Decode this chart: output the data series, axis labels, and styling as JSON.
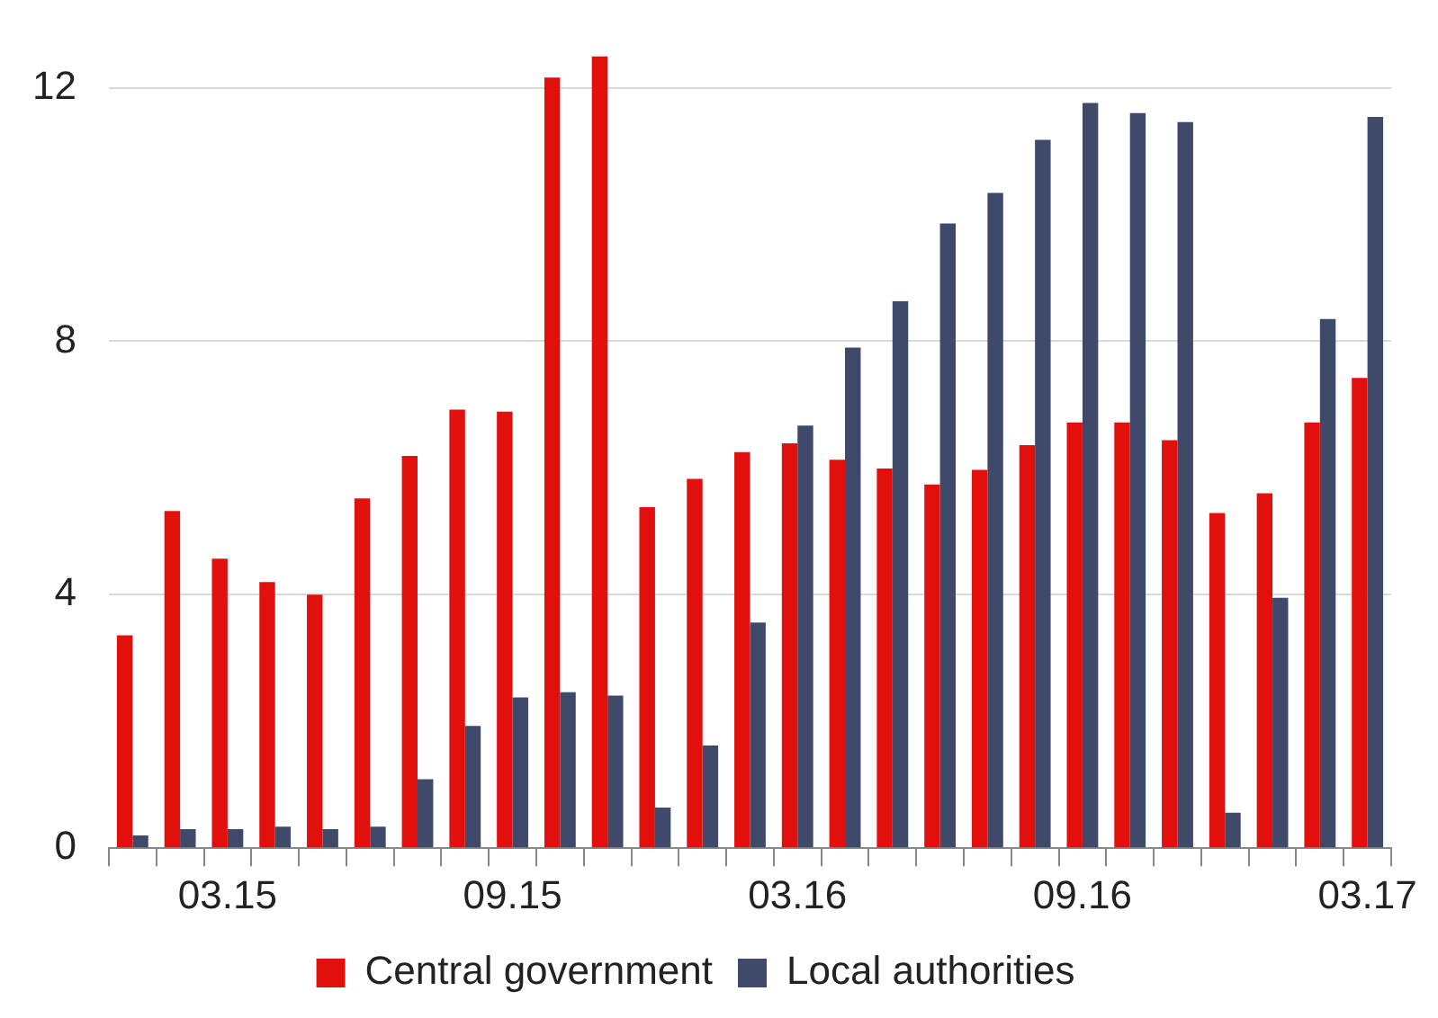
{
  "chart_data": {
    "type": "bar",
    "categories": [
      null,
      null,
      "03.15",
      null,
      null,
      null,
      null,
      null,
      "09.15",
      null,
      null,
      null,
      null,
      null,
      "03.16",
      null,
      null,
      null,
      null,
      null,
      "09.16",
      null,
      null,
      null,
      null,
      null,
      "03.17"
    ],
    "series": [
      {
        "name": "Central government",
        "color": "#e2100c",
        "values": [
          3.36,
          5.32,
          4.57,
          4.2,
          4.0,
          5.52,
          6.19,
          6.92,
          6.89,
          12.16,
          12.5,
          5.38,
          5.83,
          6.25,
          6.39,
          6.13,
          5.99,
          5.74,
          5.97,
          6.36,
          6.72,
          6.72,
          6.44,
          5.29,
          5.6,
          6.72,
          7.42
        ]
      },
      {
        "name": "Local authorities",
        "color": "#3f4a6b",
        "values": [
          0.2,
          0.3,
          0.3,
          0.34,
          0.3,
          0.34,
          1.09,
          1.93,
          2.38,
          2.46,
          2.41,
          0.64,
          1.62,
          3.56,
          6.67,
          7.9,
          8.63,
          9.86,
          10.34,
          11.18,
          11.76,
          11.6,
          11.46,
          0.56,
          3.95,
          8.35,
          11.54
        ]
      }
    ],
    "ylim": [
      0,
      12.5
    ],
    "yticks": [
      0,
      4,
      8,
      12
    ],
    "grid": "y",
    "legend": "bottom"
  }
}
